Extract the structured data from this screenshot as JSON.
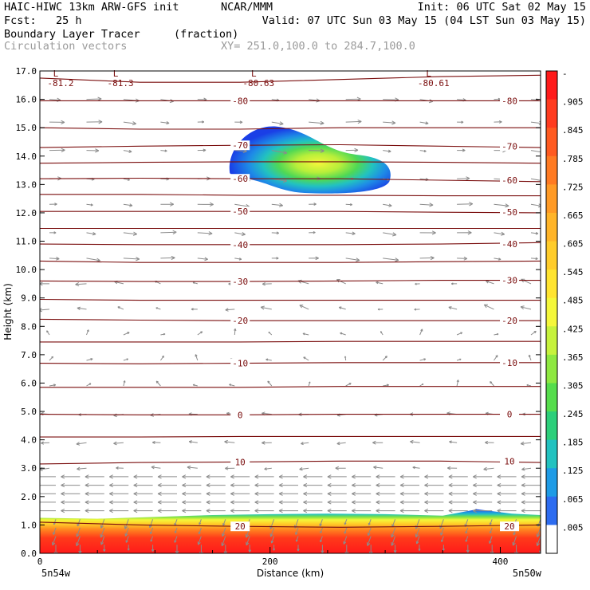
{
  "header": {
    "line1_left": "HAIC-HIWC 13km ARW-GFS init",
    "line1_mid": "NCAR/MMM",
    "line1_right": "Init: 06 UTC Sat 02 May 15",
    "line2_left": "Fcst:   25 h",
    "line2_right": "Valid: 07 UTC Sun 03 May 15 (04 LST Sun 03 May 15)",
    "field_name": "Boundary Layer Tracer",
    "field_units": "(fraction)",
    "vector_name": "Circulation vectors",
    "xy_info": "XY= 251.0,100.0 to 284.7,100.0"
  },
  "colors": {
    "isotherm": "#7a0d0d",
    "vector": "#8c8c8c"
  },
  "chart_data": {
    "type": "heatmap",
    "xlabel": "Distance (km)",
    "ylabel": "Height (km)",
    "xlim": [
      0,
      435
    ],
    "ylim": [
      0,
      17
    ],
    "x_ticks": [
      {
        "v": 0,
        "label": "0"
      },
      {
        "v": 200,
        "label": "200"
      },
      {
        "v": 400,
        "label": "400"
      }
    ],
    "y_ticks": [
      {
        "v": 0,
        "label": "0.0"
      },
      {
        "v": 1,
        "label": "1.0"
      },
      {
        "v": 2,
        "label": "2.0"
      },
      {
        "v": 3,
        "label": "3.0"
      },
      {
        "v": 4,
        "label": "4.0"
      },
      {
        "v": 5,
        "label": "5.0"
      },
      {
        "v": 6,
        "label": "6.0"
      },
      {
        "v": 7,
        "label": "7.0"
      },
      {
        "v": 8,
        "label": "8.0"
      },
      {
        "v": 9,
        "label": "9.0"
      },
      {
        "v": 10,
        "label": "10.0"
      },
      {
        "v": 11,
        "label": "11.0"
      },
      {
        "v": 12,
        "label": "12.0"
      },
      {
        "v": 13,
        "label": "13.0"
      },
      {
        "v": 14,
        "label": "14.0"
      },
      {
        "v": 15,
        "label": "15.0"
      },
      {
        "v": 16,
        "label": "16.0"
      },
      {
        "v": 17,
        "label": "17.0"
      }
    ],
    "x_end_left": "5n54w",
    "x_end_right": "5n50w",
    "colorbar": {
      "labels": [
        "-",
        ".905",
        ".845",
        ".785",
        ".725",
        ".665",
        ".605",
        ".545",
        ".485",
        ".425",
        ".365",
        ".305",
        ".245",
        ".185",
        ".125",
        ".065",
        ".005"
      ],
      "colors": [
        "#ff1a1a",
        "#ff3b1f",
        "#ff5a20",
        "#ff7a22",
        "#ff9a25",
        "#ffb428",
        "#ffcc2a",
        "#ffe430",
        "#f4f73a",
        "#c6f23c",
        "#8ee840",
        "#55dd4c",
        "#2ccf7a",
        "#22c2c0",
        "#1e9be6",
        "#2d6cf0",
        "#ffffff"
      ]
    },
    "isotherms": [
      {
        "label": "20",
        "y": [
          1.1,
          1.0,
          0.95,
          0.92,
          0.95,
          1.0
        ]
      },
      {
        "label": "10",
        "y": [
          3.15,
          3.2,
          3.22,
          3.25,
          3.25,
          3.2
        ]
      },
      {
        "label": "",
        "y": [
          4.1,
          4.1,
          4.12,
          4.12,
          4.12,
          4.12
        ]
      },
      {
        "label": "0",
        "y": [
          4.9,
          4.88,
          4.88,
          4.9,
          4.9,
          4.9
        ]
      },
      {
        "label": "",
        "y": [
          5.85,
          5.85,
          5.85,
          5.88,
          5.88,
          5.88
        ]
      },
      {
        "label": "-10",
        "y": [
          6.7,
          6.68,
          6.7,
          6.72,
          6.72,
          6.72
        ]
      },
      {
        "label": "",
        "y": [
          7.45,
          7.45,
          7.45,
          7.47,
          7.47,
          7.47
        ]
      },
      {
        "label": "-20",
        "y": [
          8.25,
          8.22,
          8.2,
          8.2,
          8.2,
          8.2
        ]
      },
      {
        "label": "",
        "y": [
          8.95,
          8.92,
          8.92,
          8.92,
          8.92,
          8.92
        ]
      },
      {
        "label": "-30",
        "y": [
          9.6,
          9.58,
          9.58,
          9.6,
          9.62,
          9.62
        ]
      },
      {
        "label": "",
        "y": [
          10.3,
          10.25,
          10.25,
          10.25,
          10.28,
          10.3
        ]
      },
      {
        "label": "-40",
        "y": [
          10.9,
          10.88,
          10.88,
          10.88,
          10.9,
          10.95
        ]
      },
      {
        "label": "",
        "y": [
          11.45,
          11.45,
          11.45,
          11.45,
          11.45,
          11.45
        ]
      },
      {
        "label": "-50",
        "y": [
          12.05,
          12.05,
          12.05,
          12.05,
          12.02,
          12.0
        ]
      },
      {
        "label": "",
        "y": [
          12.65,
          12.65,
          12.62,
          12.62,
          12.6,
          12.6
        ]
      },
      {
        "label": "-60",
        "y": [
          13.2,
          13.22,
          13.2,
          13.2,
          13.15,
          13.1
        ]
      },
      {
        "label": "",
        "y": [
          13.75,
          13.78,
          13.8,
          13.8,
          13.78,
          13.75
        ]
      },
      {
        "label": "-70",
        "y": [
          14.3,
          14.35,
          14.38,
          14.4,
          14.35,
          14.3
        ]
      },
      {
        "label": "",
        "y": [
          15.0,
          14.95,
          14.95,
          15.0,
          15.0,
          15.0
        ]
      },
      {
        "label": "-80",
        "y": [
          15.95,
          15.95,
          15.95,
          15.95,
          15.95,
          15.95
        ]
      },
      {
        "label": "",
        "y": [
          16.75,
          16.6,
          16.6,
          16.7,
          16.8,
          16.85
        ]
      }
    ],
    "isotherm_x": [
      0,
      87,
      174,
      261,
      348,
      435
    ],
    "minima": [
      {
        "x": 18,
        "y": 16.75,
        "mark": "L",
        "label": "-81.2"
      },
      {
        "x": 70,
        "y": 16.75,
        "mark": "L",
        "label": "-81.3"
      },
      {
        "x": 190,
        "y": 16.75,
        "mark": "L",
        "label": "-80.63"
      },
      {
        "x": 342,
        "y": 16.75,
        "mark": "L",
        "label": "-80.61"
      }
    ],
    "tracer_layer": {
      "x": [
        0,
        50,
        100,
        150,
        200,
        250,
        300,
        350,
        380,
        410,
        435
      ],
      "top": [
        1.25,
        1.22,
        1.28,
        1.35,
        1.38,
        1.4,
        1.38,
        1.33,
        1.55,
        1.4,
        1.35
      ]
    },
    "tracer_cloud": {
      "center_x": 255,
      "center_y": 13.7,
      "extent_x": [
        165,
        305
      ],
      "extent_y": [
        12.7,
        15.1
      ]
    },
    "upper_wind_levels_km": [
      16.0,
      15.2,
      14.2,
      13.2,
      12.3,
      11.3,
      10.4,
      9.5,
      8.6,
      7.7,
      6.8,
      5.9,
      4.9,
      3.9,
      3.0
    ],
    "lower_wind_levels_km": [
      2.7,
      2.4,
      2.1,
      1.8,
      1.5,
      1.2,
      0.9,
      0.6,
      0.3
    ]
  }
}
